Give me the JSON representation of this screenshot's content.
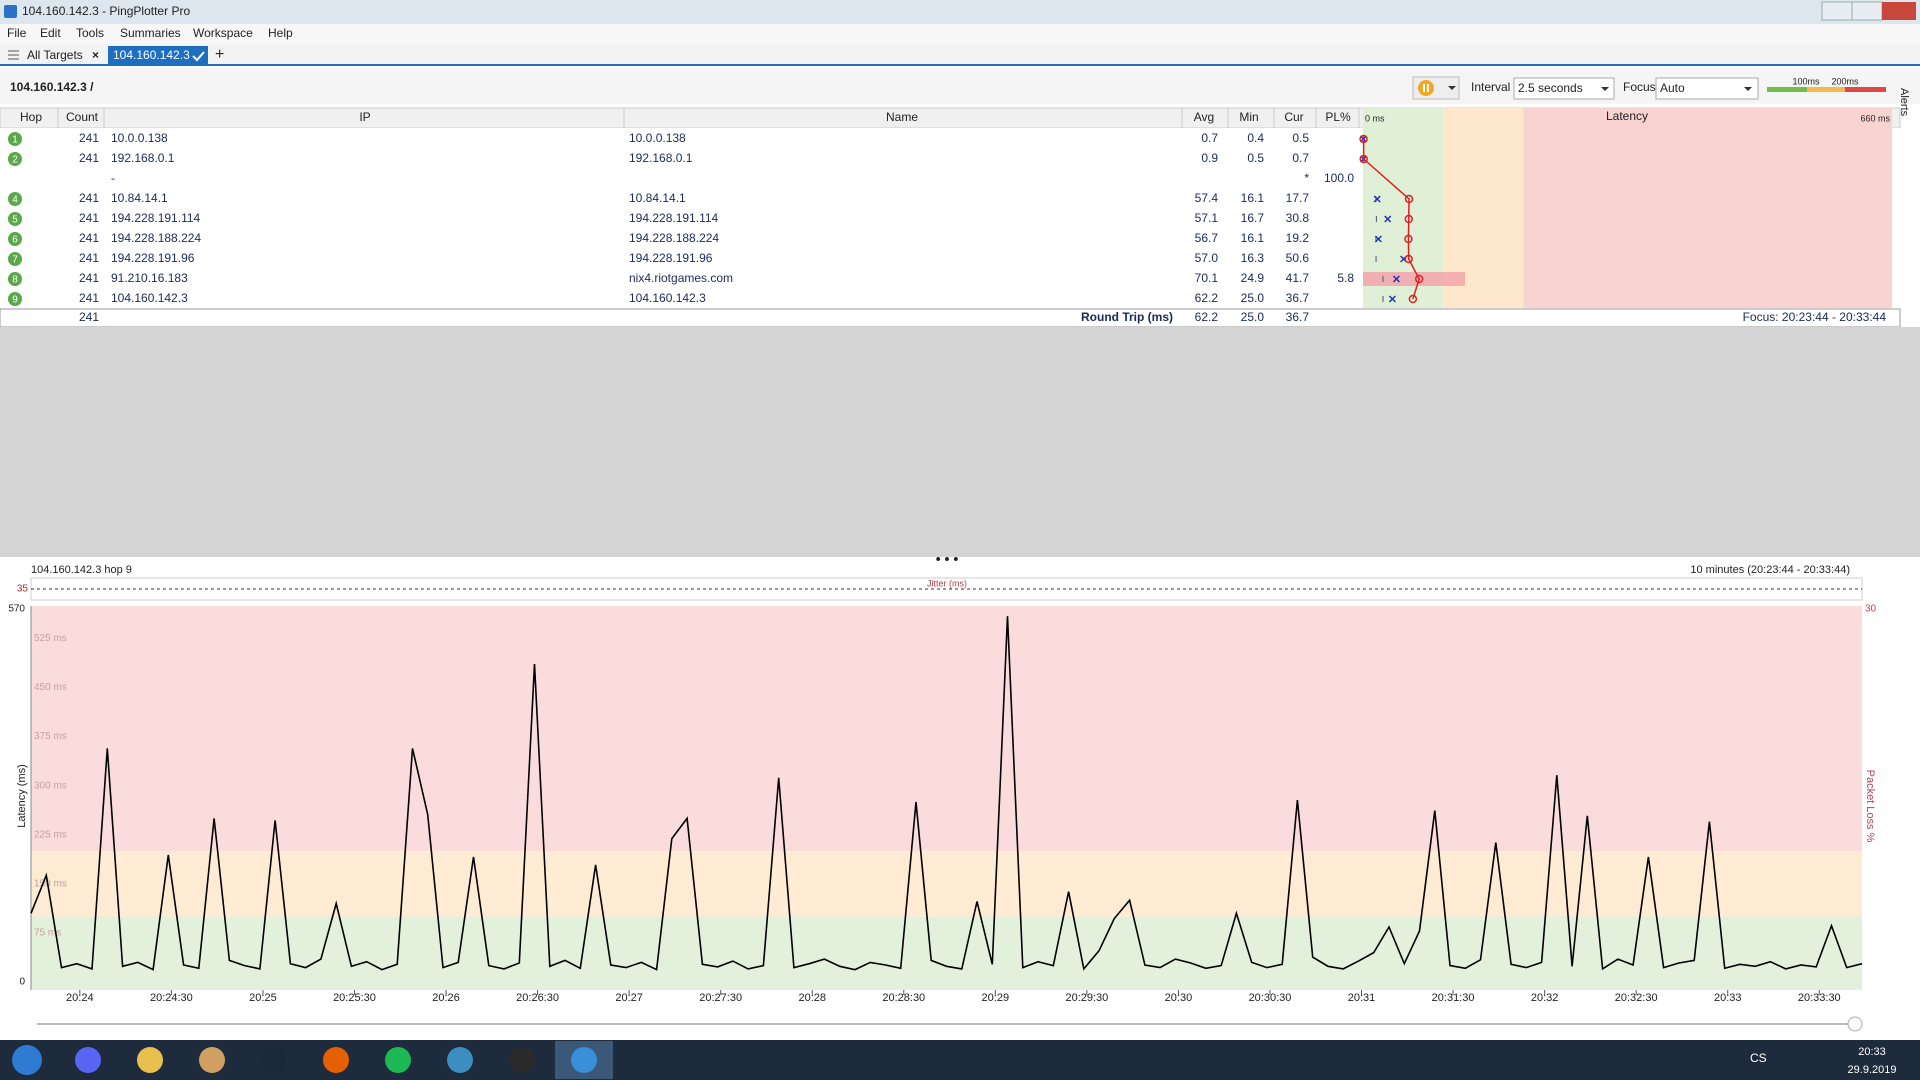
{
  "window": {
    "title": "104.160.142.3 - PingPlotter Pro"
  },
  "menu": [
    "File",
    "Edit",
    "Tools",
    "Summaries",
    "Workspace",
    "Help"
  ],
  "tabs": [
    "All Targets",
    "104.160.142.3"
  ],
  "toolbar": {
    "target": "104.160.142.3 /",
    "interval_label": "Interval",
    "interval": "2.5 seconds",
    "focus_label": "Focus",
    "focus": "Auto",
    "alerts": "Alerts"
  },
  "thresholds": [
    {
      "value": 100,
      "label": "100ms"
    },
    {
      "value": 200,
      "label": "200ms"
    }
  ],
  "table": {
    "headers": [
      "Hop",
      "Count",
      "IP",
      "Name",
      "Avg",
      "Min",
      "Cur",
      "PL%"
    ],
    "latency_header": "Latency",
    "xlim": [
      0,
      660
    ],
    "xticks": [
      {
        "value": 0,
        "label": "0 ms"
      },
      {
        "value": 660,
        "label": "660 ms"
      }
    ],
    "rows": [
      {
        "hop": 1,
        "count": 241,
        "ip": "10.0.0.138",
        "name": "10.0.0.138",
        "avg": "0.7",
        "min": "0.4",
        "cur": "0.5"
      },
      {
        "hop": 2,
        "count": 241,
        "ip": "192.168.0.1",
        "name": "192.168.0.1",
        "avg": "0.9",
        "min": "0.5",
        "cur": "0.7"
      },
      {
        "ip": "-",
        "cur": "*",
        "pl": "100.0"
      },
      {
        "hop": 4,
        "count": 241,
        "ip": "10.84.14.1",
        "name": "10.84.14.1",
        "avg": "57.4",
        "min": "16.1",
        "cur": "17.7"
      },
      {
        "hop": 5,
        "count": 241,
        "ip": "194.228.191.114",
        "name": "194.228.191.114",
        "avg": "57.1",
        "min": "16.7",
        "cur": "30.8"
      },
      {
        "hop": 6,
        "count": 241,
        "ip": "194.228.188.224",
        "name": "194.228.188.224",
        "avg": "56.7",
        "min": "16.1",
        "cur": "19.2"
      },
      {
        "hop": 7,
        "count": 241,
        "ip": "194.228.191.96",
        "name": "194.228.191.96",
        "avg": "57.0",
        "min": "16.3",
        "cur": "50.6"
      },
      {
        "hop": 8,
        "count": 241,
        "ip": "91.210.16.183",
        "name": "nix4.riotgames.com",
        "avg": "70.1",
        "min": "24.9",
        "cur": "41.7",
        "pl": "5.8"
      },
      {
        "hop": 9,
        "count": 241,
        "ip": "104.160.142.3",
        "name": "104.160.142.3",
        "avg": "62.2",
        "min": "25.0",
        "cur": "36.7"
      }
    ],
    "footer": {
      "count": 241,
      "label": "Round Trip (ms)",
      "avg": "62.2",
      "min": "25.0",
      "cur": "36.7",
      "focus": "Focus: 20:23:44 - 20:33:44"
    }
  },
  "taskbar": {
    "lang": "CS",
    "time": "20:33",
    "date": "29.9.2019"
  },
  "chart_data": {
    "type": "line",
    "title": "104.160.142.3 hop 9",
    "range_label": "10 minutes (20:23:44 - 20:33:44)",
    "jitter_label": "Jitter (ms)",
    "jitter_ticks": [
      35
    ],
    "ylabel": "Latency (ms)",
    "y2label": "Packet Loss %",
    "ylim": [
      0,
      570
    ],
    "yticks": [
      0,
      {
        "value": 75,
        "label": "75 ms"
      },
      {
        "value": 150,
        "label": "150 ms"
      },
      {
        "value": 225,
        "label": "225 ms"
      },
      {
        "value": 300,
        "label": "300 ms"
      },
      {
        "value": 375,
        "label": "375 ms"
      },
      {
        "value": 450,
        "label": "450 ms"
      },
      {
        "value": 525,
        "label": "525 ms"
      },
      570
    ],
    "y2lim": [
      0,
      30
    ],
    "y2ticks": [
      30
    ],
    "xlim": [
      "20:23:44",
      "20:33:44"
    ],
    "xticks": [
      "20:24",
      "20:24:30",
      "20:25",
      "20:25:30",
      "20:26",
      "20:26:30",
      "20:27",
      "20:27:30",
      "20:28",
      "20:28:30",
      "20:29",
      "20:29:30",
      "20:30",
      "20:30:30",
      "20:31",
      "20:31:30",
      "20:32",
      "20:32:30",
      "20:33",
      "20:33:30"
    ],
    "x": [
      "20:23:44",
      "20:23:49",
      "20:23:54",
      "20:23:59",
      "20:24:04",
      "20:24:09",
      "20:24:14",
      "20:24:19",
      "20:24:24",
      "20:24:29",
      "20:24:34",
      "20:24:39",
      "20:24:44",
      "20:24:49",
      "20:24:54",
      "20:24:59",
      "20:25:04",
      "20:25:09",
      "20:25:14",
      "20:25:19",
      "20:25:24",
      "20:25:29",
      "20:25:34",
      "20:25:39",
      "20:25:44",
      "20:25:49",
      "20:25:54",
      "20:25:59",
      "20:26:04",
      "20:26:09",
      "20:26:14",
      "20:26:19",
      "20:26:24",
      "20:26:29",
      "20:26:34",
      "20:26:39",
      "20:26:44",
      "20:26:49",
      "20:26:54",
      "20:26:59",
      "20:27:04",
      "20:27:09",
      "20:27:14",
      "20:27:19",
      "20:27:24",
      "20:27:29",
      "20:27:34",
      "20:27:39",
      "20:27:44",
      "20:27:49",
      "20:27:54",
      "20:27:59",
      "20:28:04",
      "20:28:09",
      "20:28:14",
      "20:28:19",
      "20:28:24",
      "20:28:29",
      "20:28:34",
      "20:28:39",
      "20:28:44",
      "20:28:49",
      "20:28:54",
      "20:28:59",
      "20:29:04",
      "20:29:09",
      "20:29:14",
      "20:29:19",
      "20:29:24",
      "20:29:29",
      "20:29:34",
      "20:29:39",
      "20:29:44",
      "20:29:49",
      "20:29:54",
      "20:29:59",
      "20:30:04",
      "20:30:09",
      "20:30:14",
      "20:30:19",
      "20:30:24",
      "20:30:29",
      "20:30:34",
      "20:30:39",
      "20:30:44",
      "20:30:49",
      "20:30:54",
      "20:30:59",
      "20:31:04",
      "20:31:09",
      "20:31:14",
      "20:31:19",
      "20:31:24",
      "20:31:29",
      "20:31:34",
      "20:31:39",
      "20:31:44",
      "20:31:49",
      "20:31:54",
      "20:31:59",
      "20:32:04",
      "20:32:09",
      "20:32:14",
      "20:32:19",
      "20:32:24",
      "20:32:29",
      "20:32:34",
      "20:32:39",
      "20:32:44",
      "20:32:49",
      "20:32:54",
      "20:32:59",
      "20:33:04",
      "20:33:09",
      "20:33:14",
      "20:33:19",
      "20:33:24",
      "20:33:29",
      "20:33:34",
      "20:33:39",
      "20:33:44"
    ],
    "series": [
      {
        "color": "#000000",
        "values": [
          105,
          163,
          22,
          28,
          20,
          357,
          24,
          30,
          19,
          194,
          26,
          21,
          250,
          33,
          25,
          20,
          247,
          28,
          22,
          35,
          120,
          24,
          31,
          19,
          27,
          357,
          256,
          22,
          30,
          191,
          25,
          20,
          29,
          486,
          24,
          33,
          21,
          179,
          26,
          22,
          30,
          19,
          219,
          250,
          27,
          23,
          32,
          20,
          25,
          312,
          22,
          28,
          35,
          24,
          19,
          30,
          26,
          21,
          275,
          33,
          24,
          20,
          123,
          27,
          559,
          22,
          31,
          25,
          138,
          20,
          48,
          97,
          125,
          26,
          22,
          35,
          29,
          21,
          25,
          105,
          30,
          22,
          27,
          278,
          38,
          24,
          20,
          32,
          45,
          84,
          28,
          78,
          262,
          25,
          21,
          34,
          213,
          27,
          22,
          30,
          316,
          24,
          254,
          20,
          35,
          26,
          191,
          22,
          29,
          33,
          245,
          21,
          27,
          24,
          31,
          20,
          26,
          23,
          86,
          22,
          28
        ]
      }
    ]
  }
}
